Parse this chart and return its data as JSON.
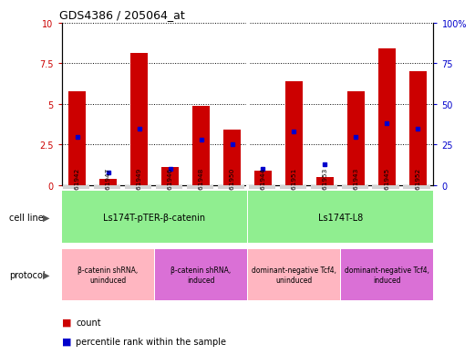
{
  "title": "GDS4386 / 205064_at",
  "samples": [
    "GSM461942",
    "GSM461947",
    "GSM461949",
    "GSM461946",
    "GSM461948",
    "GSM461950",
    "GSM461944",
    "GSM461951",
    "GSM461953",
    "GSM461943",
    "GSM461945",
    "GSM461952"
  ],
  "red_values": [
    5.8,
    0.4,
    8.1,
    1.1,
    4.9,
    3.4,
    0.9,
    6.4,
    0.5,
    5.8,
    8.4,
    7.0
  ],
  "blue_values": [
    3.0,
    0.8,
    3.5,
    1.0,
    2.8,
    2.5,
    1.0,
    3.3,
    1.3,
    3.0,
    3.8,
    3.5
  ],
  "ylim_left": [
    0,
    10
  ],
  "ylim_right": [
    0,
    100
  ],
  "yticks_left": [
    0,
    2.5,
    5.0,
    7.5,
    10
  ],
  "ytick_labels_left": [
    "0",
    "2.5",
    "5",
    "7.5",
    "10"
  ],
  "yticks_right": [
    0,
    25,
    50,
    75,
    100
  ],
  "ytick_labels_right": [
    "0",
    "25",
    "50",
    "75",
    "100%"
  ],
  "cell_line_groups": [
    {
      "label": "Ls174T-pTER-β-catenin",
      "start": 0,
      "end": 5,
      "color": "#90ee90"
    },
    {
      "label": "Ls174T-L8",
      "start": 6,
      "end": 11,
      "color": "#90ee90"
    }
  ],
  "protocol_groups": [
    {
      "label": "β-catenin shRNA,\nuninduced",
      "start": 0,
      "end": 2,
      "color": "#ffb6c1"
    },
    {
      "label": "β-catenin shRNA,\ninduced",
      "start": 3,
      "end": 5,
      "color": "#da70d6"
    },
    {
      "label": "dominant-negative Tcf4,\nuninduced",
      "start": 6,
      "end": 8,
      "color": "#ffb6c1"
    },
    {
      "label": "dominant-negative Tcf4,\ninduced",
      "start": 9,
      "end": 11,
      "color": "#da70d6"
    }
  ],
  "cell_line_label": "cell line",
  "protocol_label": "protocol",
  "legend_count_color": "#cc0000",
  "legend_pct_color": "#0000cc",
  "bar_color": "#cc0000",
  "marker_color": "#0000cc",
  "background_color": "#ffffff",
  "tick_bg": "#d3d3d3",
  "gap_color": "#ffffff"
}
